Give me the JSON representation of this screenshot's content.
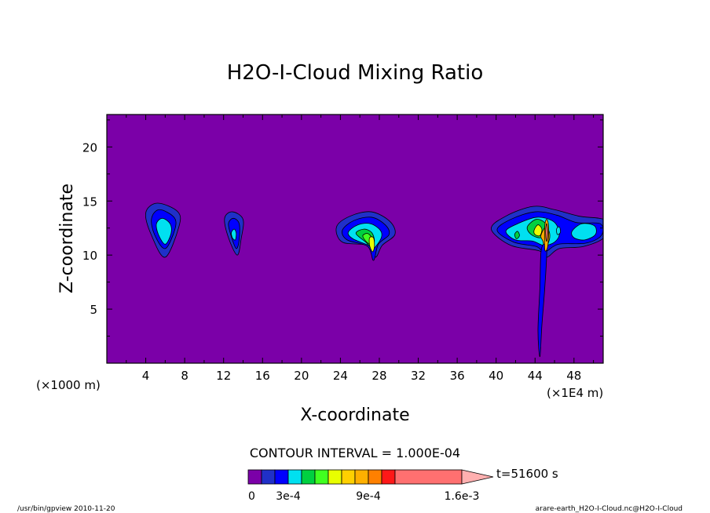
{
  "chart_data": {
    "type": "contour",
    "title": "H2O-I-Cloud Mixing Ratio",
    "xlabel": "X-coordinate",
    "ylabel": "Z-coordinate",
    "x_scale_left": "(×1000 m)",
    "x_scale_right": "(×1E4 m)",
    "xlim": [
      0,
      51
    ],
    "ylim": [
      0,
      23
    ],
    "x_ticks": [
      4,
      8,
      12,
      16,
      20,
      24,
      28,
      32,
      36,
      40,
      44,
      48
    ],
    "y_ticks": [
      5,
      10,
      15,
      20
    ],
    "contour_interval_text": "CONTOUR INTERVAL = 1.000E-04",
    "time_text": "t=51600 s",
    "colorbar": {
      "levels": [
        0,
        0.0001,
        0.0002,
        0.0003,
        0.0004,
        0.0005,
        0.0006,
        0.0007,
        0.0008,
        0.0009,
        0.001,
        0.0011,
        0.0012,
        0.0013,
        0.0014,
        0.0015,
        0.0016,
        0.0017
      ],
      "tick_labels": [
        {
          "text": "0",
          "value": 0
        },
        {
          "text": "3e-4",
          "value": 0.0003
        },
        {
          "text": "9e-4",
          "value": 0.0009
        },
        {
          "text": "1.6e-3",
          "value": 0.0016
        }
      ],
      "colors": [
        "#7b00a8",
        "#2030c8",
        "#0000ff",
        "#00e0f0",
        "#00d040",
        "#40ff20",
        "#e8ff00",
        "#ffd000",
        "#ffb000",
        "#ff8000",
        "#ff5000",
        "#ff1818",
        "#ff7070",
        "#ffb0b0"
      ]
    },
    "background_color": "#7b00a8",
    "cloud_cells": [
      {
        "x_center": 5.8,
        "z_top": 14.8,
        "z_bottom": 9.7,
        "max_level": 3
      },
      {
        "x_center": 13.2,
        "z_top": 14.0,
        "z_bottom": 10.0,
        "max_level": 3
      },
      {
        "x_center": 27.0,
        "z_top": 14.0,
        "z_bottom": 8.7,
        "max_level": 7
      },
      {
        "x_center": 44.6,
        "z_top": 14.5,
        "z_bottom": 0.5,
        "max_level": 12
      }
    ]
  },
  "footer": {
    "left": "/usr/bin/gpview  2010-11-20",
    "right": "arare-earth_H2O-I-Cloud.nc@H2O-I-Cloud"
  }
}
